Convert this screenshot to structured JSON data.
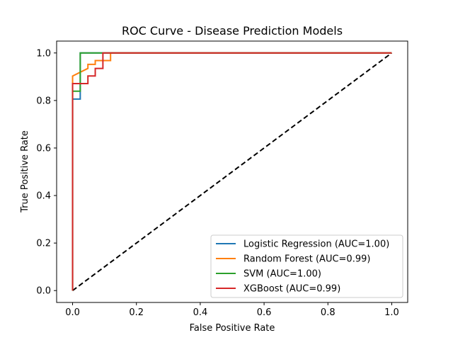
{
  "chart_data": {
    "type": "line",
    "title": "ROC Curve - Disease Prediction Models",
    "xlabel": "False Positive Rate",
    "ylabel": "True Positive Rate",
    "xlim": [
      -0.05,
      1.05
    ],
    "ylim": [
      -0.05,
      1.05
    ],
    "xticks": [
      0.0,
      0.2,
      0.4,
      0.6,
      0.8,
      1.0
    ],
    "yticks": [
      0.0,
      0.2,
      0.4,
      0.6,
      0.8,
      1.0
    ],
    "xtick_labels": [
      "0.0",
      "0.2",
      "0.4",
      "0.6",
      "0.8",
      "1.0"
    ],
    "ytick_labels": [
      "0.0",
      "0.2",
      "0.4",
      "0.6",
      "0.8",
      "1.0"
    ],
    "grid": false,
    "legend_position": "lower-right",
    "series": [
      {
        "name": "Logistic Regression (AUC=1.00)",
        "color": "#1f77b4",
        "x": [
          0.0,
          0.0,
          0.0,
          0.0,
          0.024,
          0.024,
          1.0
        ],
        "y": [
          0.0,
          0.806,
          0.806,
          0.806,
          0.806,
          1.0,
          1.0
        ]
      },
      {
        "name": "Random Forest (AUC=0.99)",
        "color": "#ff7f0e",
        "x": [
          0.0,
          0.0,
          0.024,
          0.048,
          0.048,
          0.071,
          0.071,
          0.095,
          0.095,
          0.119,
          0.119,
          1.0
        ],
        "y": [
          0.0,
          0.903,
          0.919,
          0.935,
          0.952,
          0.952,
          0.968,
          0.968,
          0.968,
          0.968,
          1.0,
          1.0
        ]
      },
      {
        "name": "SVM (AUC=1.00)",
        "color": "#2ca02c",
        "x": [
          0.0,
          0.0,
          0.024,
          0.024,
          1.0
        ],
        "y": [
          0.0,
          0.839,
          0.839,
          1.0,
          1.0
        ]
      },
      {
        "name": "XGBoost (AUC=0.99)",
        "color": "#d62728",
        "x": [
          0.0,
          0.0,
          0.048,
          0.048,
          0.071,
          0.071,
          0.095,
          0.095,
          1.0
        ],
        "y": [
          0.0,
          0.871,
          0.871,
          0.903,
          0.903,
          0.935,
          0.935,
          1.0,
          1.0
        ]
      }
    ],
    "reference_line": {
      "style": "dashed",
      "color": "#000000",
      "x": [
        0.0,
        1.0
      ],
      "y": [
        0.0,
        1.0
      ]
    }
  }
}
